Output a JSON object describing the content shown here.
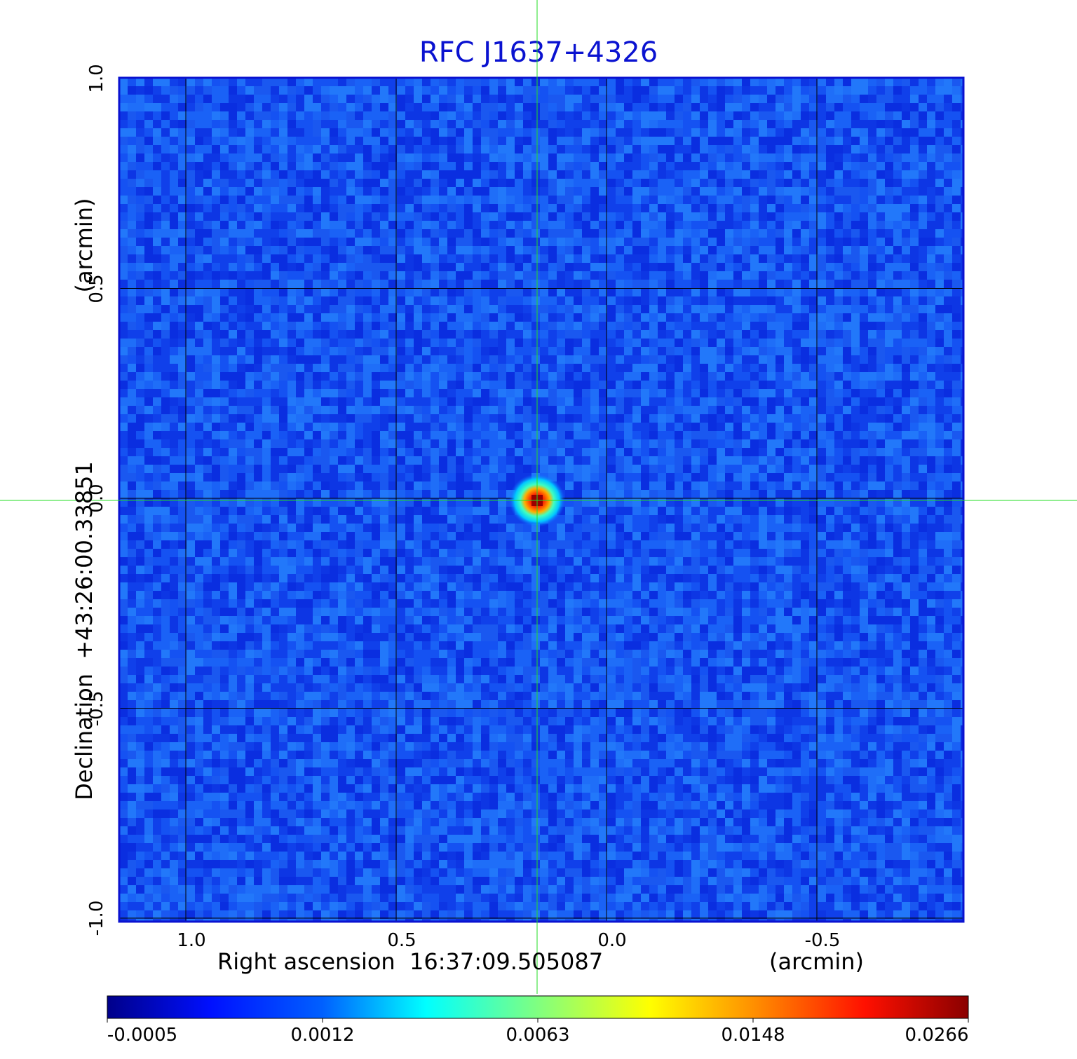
{
  "chart_data": {
    "type": "heatmap",
    "title": "RFC J1637+4326",
    "xlabel": "Right ascension  16:37:09.505087",
    "xunit": "(arcmin)",
    "ylabel": "Declination  +43:26:00.33851",
    "yunit": "(arcmin)",
    "x_ticks": [
      "1.0",
      "0.5",
      "0.0",
      "-0.5"
    ],
    "x_tick_values": [
      1.0,
      0.5,
      0.0,
      -0.5
    ],
    "y_ticks": [
      "1.0",
      "0.5",
      "0.0",
      "-0.5",
      "-1.0"
    ],
    "y_tick_values": [
      1.0,
      0.5,
      0.0,
      -0.5,
      -1.0
    ],
    "xlim": [
      1.16,
      -0.85
    ],
    "ylim": [
      -1.0,
      1.0
    ],
    "grid": true,
    "colorscale": "jet",
    "colorbar_ticks": [
      "-0.0005",
      "0.0012",
      "0.0063",
      "0.0148",
      "0.0266"
    ],
    "colorbar_range": [
      -0.0005,
      0.0266
    ],
    "source": {
      "x": 0.165,
      "y": -0.005,
      "peak": 0.0266
    },
    "crosshair": {
      "x": 0.165,
      "y": -0.005
    }
  },
  "colors": {
    "title": "#0a12d0",
    "frame": "#0a12d0",
    "crosshair": "#22dd22",
    "grid": "#000000"
  }
}
